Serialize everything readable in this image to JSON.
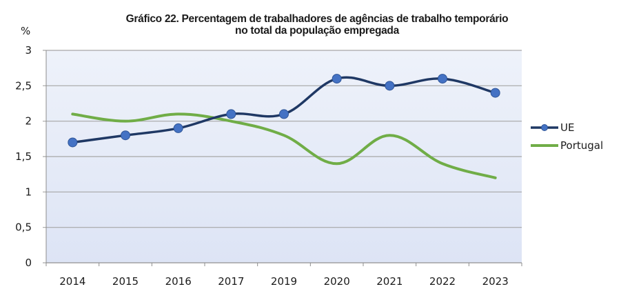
{
  "chart_data": {
    "type": "line",
    "title_line1": "Gráfico 22. Percentagem de trabalhadores de agências de trabalho temporário",
    "title_line2": "no total da população empregada",
    "ylabel": "%",
    "xlabel": "",
    "categories": [
      "2014",
      "2015",
      "2016",
      "2017",
      "2019",
      "2020",
      "2021",
      "2022",
      "2023"
    ],
    "ylim": [
      0,
      3
    ],
    "yticks": [
      0,
      0.5,
      1,
      1.5,
      2,
      2.5,
      3
    ],
    "ytick_labels": [
      "0",
      "0,5",
      "1",
      "1,5",
      "2",
      "2,5",
      "3"
    ],
    "grid": true,
    "legend_position": "right",
    "series": [
      {
        "name": "UE",
        "color": "#1f3864",
        "marker": "circle",
        "marker_color": "#4472c4",
        "smooth": true,
        "values": [
          1.7,
          1.8,
          1.9,
          2.1,
          2.1,
          2.6,
          2.5,
          2.6,
          2.4
        ]
      },
      {
        "name": "Portugal",
        "color": "#70ad47",
        "marker": "none",
        "smooth": true,
        "values": [
          2.1,
          2.0,
          2.1,
          2.0,
          1.8,
          1.4,
          1.8,
          1.4,
          1.2
        ]
      }
    ]
  }
}
